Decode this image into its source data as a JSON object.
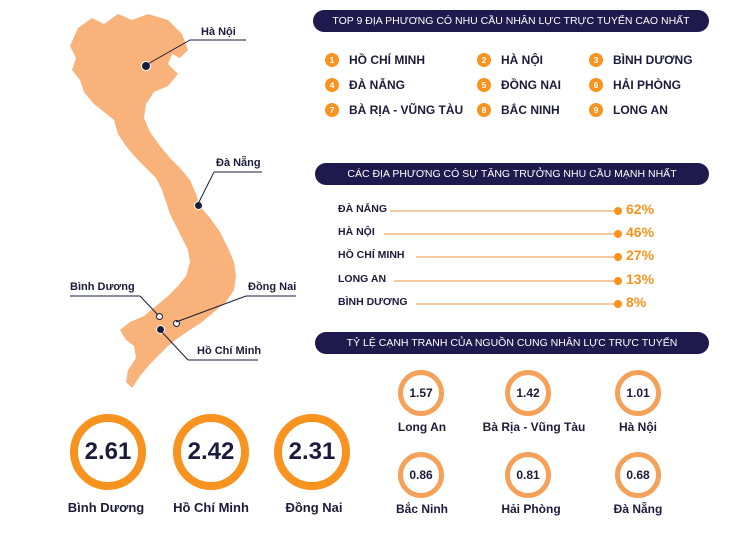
{
  "colors": {
    "navy": "#1f1a4d",
    "orange": "#f7931e",
    "map_fill": "#f9b27a",
    "light_orange": "#f7c9a0"
  },
  "map": {
    "cities": [
      {
        "key": "hanoi",
        "name": "Hà Nội"
      },
      {
        "key": "danang",
        "name": "Đà Nẵng"
      },
      {
        "key": "binhduong",
        "name": "Bình Dương"
      },
      {
        "key": "dongnai",
        "name": "Đồng Nai"
      },
      {
        "key": "hcm",
        "name": "Hồ Chí Minh"
      }
    ]
  },
  "top9": {
    "title": "TOP 9 ĐỊA PHƯƠNG CÓ NHU CẦU NHÂN LỰC TRỰC TUYẾN CAO NHẤT",
    "items": [
      {
        "rank": "1",
        "name": "HỒ CHÍ MINH"
      },
      {
        "rank": "2",
        "name": "HÀ NỘI"
      },
      {
        "rank": "3",
        "name": "BÌNH DƯƠNG"
      },
      {
        "rank": "4",
        "name": "ĐÀ NẴNG"
      },
      {
        "rank": "5",
        "name": "ĐỒNG NAI"
      },
      {
        "rank": "6",
        "name": "HẢI PHÒNG"
      },
      {
        "rank": "7",
        "name": "BÀ RỊA - VŨNG TÀU"
      },
      {
        "rank": "8",
        "name": "BẮC NINH"
      },
      {
        "rank": "9",
        "name": "LONG AN"
      }
    ]
  },
  "growth": {
    "title": "CÁC ĐỊA PHƯƠNG CÓ SỰ TĂNG TRƯỞNG NHU CẦU MẠNH NHẤT",
    "items": [
      {
        "name": "ĐÀ NẴNG",
        "value": "62%"
      },
      {
        "name": "HÀ NỘI",
        "value": "46%"
      },
      {
        "name": "HỒ CHÍ MINH",
        "value": "27%"
      },
      {
        "name": "LONG AN",
        "value": "13%"
      },
      {
        "name": "BÌNH DƯƠNG",
        "value": "8%"
      }
    ]
  },
  "competition": {
    "title": "TỶ LỆ CẠNH TRANH CỦA NGUỒN CUNG NHÂN LỰC TRỰC TUYẾN",
    "items": [
      {
        "value": "1.57",
        "name": "Long An"
      },
      {
        "value": "1.42",
        "name": "Bà Rịa - Vũng Tàu"
      },
      {
        "value": "1.01",
        "name": "Hà Nội"
      },
      {
        "value": "0.86",
        "name": "Bắc Ninh"
      },
      {
        "value": "0.81",
        "name": "Hải Phòng"
      },
      {
        "value": "0.68",
        "name": "Đà Nẵng"
      }
    ]
  },
  "big_ratios": {
    "items": [
      {
        "value": "2.61",
        "name": "Bình Dương"
      },
      {
        "value": "2.42",
        "name": "Hồ Chí Minh"
      },
      {
        "value": "2.31",
        "name": "Đồng Nai"
      }
    ]
  }
}
